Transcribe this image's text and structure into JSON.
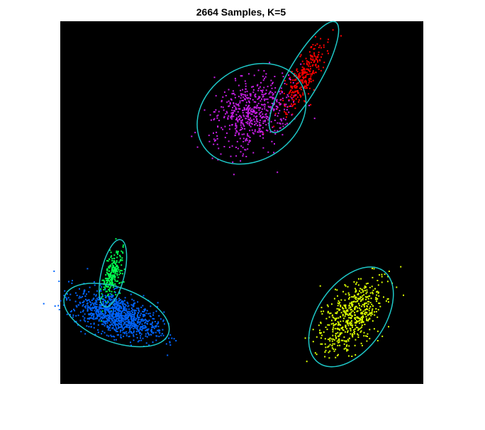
{
  "chart_data": {
    "type": "scatter",
    "title": "2664 Samples, K=5",
    "xlabel": "",
    "ylabel": "",
    "xlim": [
      0,
      1
    ],
    "ylim": [
      0,
      1
    ],
    "grid": false,
    "axes_visible": false,
    "background_color": "#000000",
    "ellipse_color": "#1ec8c8",
    "total_samples": 2664,
    "k": 5,
    "clusters": [
      {
        "color": "#ff0000",
        "center": [
          0.671,
          0.846
        ],
        "semi_axes": [
          0.175,
          0.045
        ],
        "angle_deg": 60,
        "sd": [
          0.055,
          0.016
        ],
        "count": 280
      },
      {
        "color": "#c81ee6",
        "center": [
          0.527,
          0.745
        ],
        "semi_axes": [
          0.16,
          0.127
        ],
        "angle_deg": 35,
        "sd": [
          0.06,
          0.043
        ],
        "count": 560
      },
      {
        "color": "#00ff50",
        "center": [
          0.145,
          0.305
        ],
        "semi_axes": [
          0.095,
          0.032
        ],
        "angle_deg": 77,
        "sd": [
          0.036,
          0.011
        ],
        "count": 240
      },
      {
        "color": "#0064ff",
        "center": [
          0.155,
          0.19
        ],
        "semi_axes": [
          0.152,
          0.075
        ],
        "angle_deg": -20,
        "sd": [
          0.06,
          0.026
        ],
        "count": 1040
      },
      {
        "color": "#dcff00",
        "center": [
          0.801,
          0.185
        ],
        "semi_axes": [
          0.155,
          0.092
        ],
        "angle_deg": 55,
        "sd": [
          0.058,
          0.033
        ],
        "count": 544
      }
    ]
  }
}
